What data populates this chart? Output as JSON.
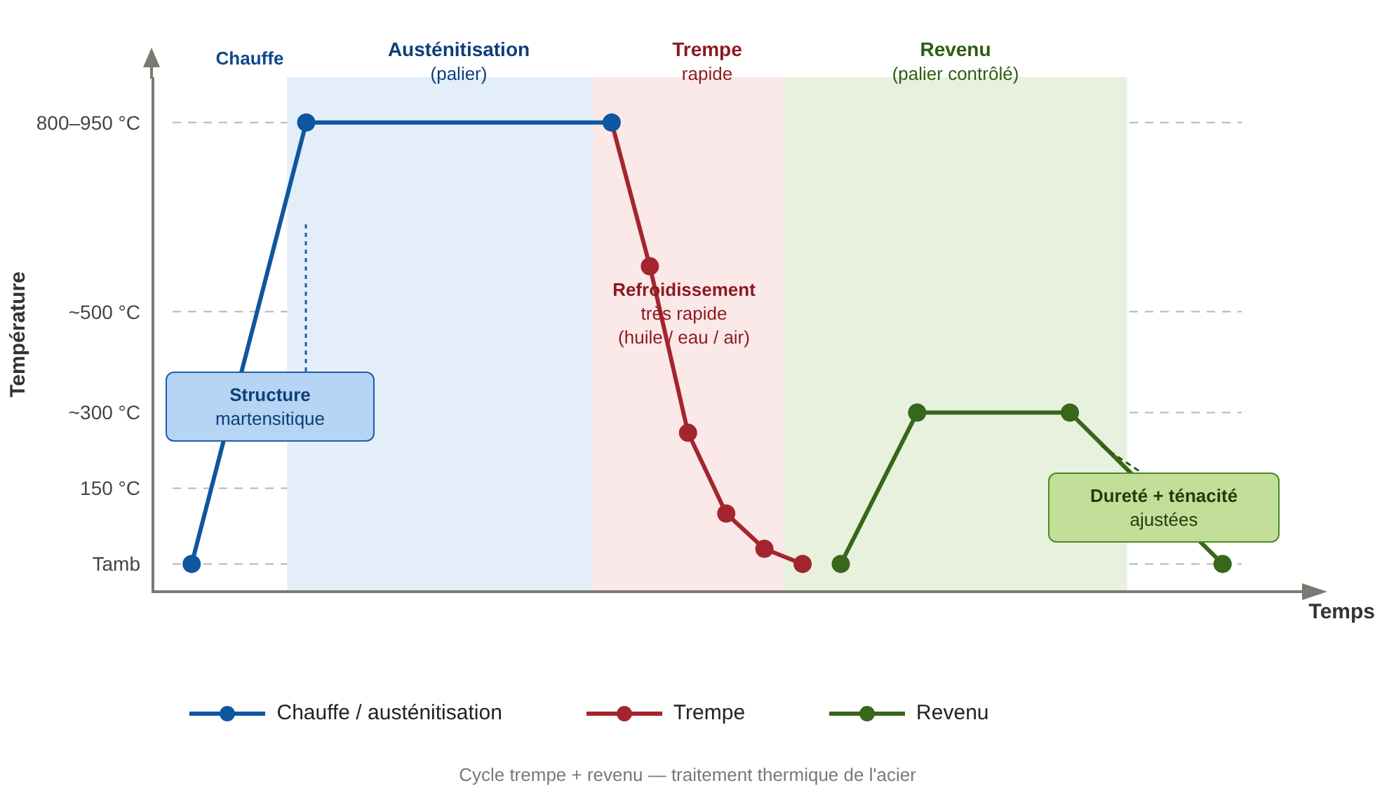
{
  "chart_data": {
    "type": "line",
    "xlabel": "Temps",
    "ylabel": "Température",
    "categories": [
      null,
      null,
      null,
      null,
      null,
      null,
      null,
      null,
      null,
      null,
      null,
      null,
      null,
      null,
      null,
      null,
      null,
      null,
      null,
      null,
      null,
      null,
      null,
      null,
      null,
      null,
      null,
      null
    ],
    "ylim": [
      -55,
      965
    ],
    "yticks": [
      {
        "value": 0,
        "label": "Tamb"
      },
      {
        "value": 150,
        "label": "150 °C"
      },
      {
        "value": 300,
        "label": "~300 °C"
      },
      {
        "value": 500,
        "label": "~500 °C"
      },
      {
        "value": 875,
        "label": "800–950 °C"
      }
    ],
    "tick_labels": "y",
    "grid": "y",
    "legend": "bottom",
    "marker": "circle",
    "line_style": "solid",
    "series": [
      {
        "name": "Chauffe / austénitisation",
        "color": "#0f56a0",
        "values": [
          0,
          null,
          null,
          875,
          null,
          null,
          null,
          null,
          null,
          null,
          null,
          875,
          null,
          null,
          null,
          null,
          null,
          null,
          null,
          null,
          null,
          null,
          null,
          null,
          null,
          null,
          null,
          null
        ]
      },
      {
        "name": "Trempe",
        "color": "#a3262e",
        "values": [
          null,
          null,
          null,
          null,
          null,
          null,
          null,
          null,
          null,
          null,
          null,
          875,
          590,
          260,
          100,
          30,
          0,
          null,
          null,
          null,
          null,
          null,
          null,
          null,
          null,
          null,
          null,
          null
        ]
      },
      {
        "name": "Revenu",
        "color": "#38661a",
        "values": [
          null,
          null,
          null,
          null,
          null,
          null,
          null,
          null,
          null,
          null,
          null,
          null,
          null,
          null,
          null,
          null,
          null,
          0,
          null,
          300,
          null,
          null,
          null,
          300,
          null,
          null,
          null,
          0
        ]
      }
    ],
    "annotations": [
      "Chauffe",
      "Austénitisation\n(palier)",
      "Trempe\nrapide",
      "Revenu\n(palier contrôlé)",
      "Refroidissement\ntrès rapide\n(huile / eau / air)",
      "Structure\nmartensitique",
      "Dureté + ténacité\najustées",
      "Cycle trempe + revenu — traitement thermique de l'acier"
    ]
  }
}
